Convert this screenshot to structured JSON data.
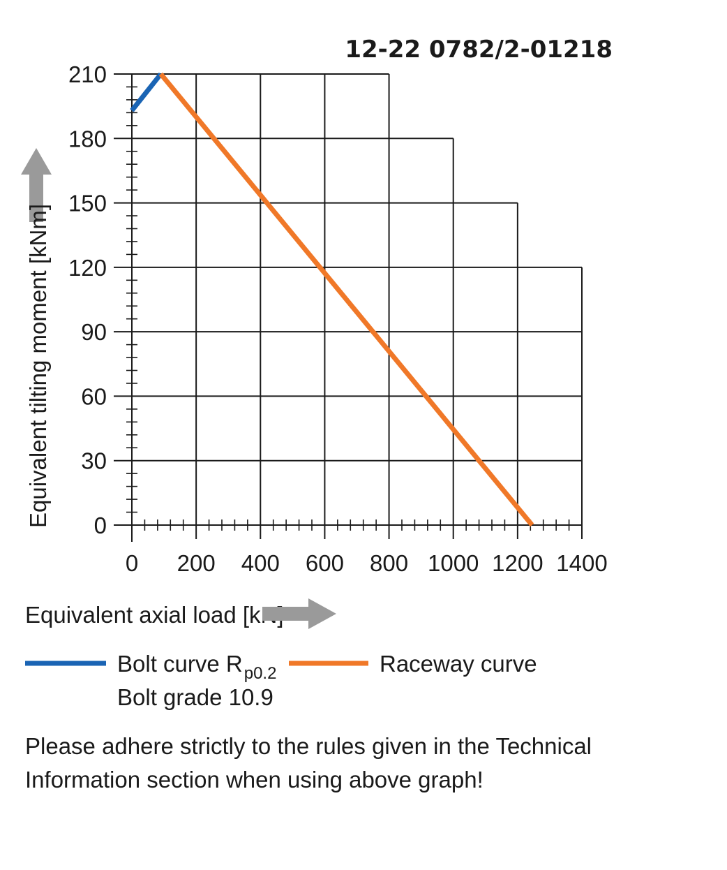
{
  "chart_data": {
    "type": "line",
    "title": "12-22 0782/2-01218",
    "xlabel": "Equivalent axial load [kN]",
    "ylabel": "Equivalent tilting moment [kNm]",
    "xlim": [
      0,
      1400
    ],
    "ylim": [
      0,
      210
    ],
    "x_ticks": [
      0,
      200,
      400,
      600,
      800,
      1000,
      1200,
      1400
    ],
    "y_ticks": [
      0,
      30,
      60,
      90,
      120,
      150,
      180,
      210
    ],
    "x_tick_labels": [
      "0",
      "200",
      "400",
      "600",
      "800",
      "1000",
      "1200",
      "1400"
    ],
    "y_tick_labels": [
      "0",
      "30",
      "60",
      "90",
      "120",
      "150",
      "180",
      "210"
    ],
    "grid_extent": [
      {
        "y": 210,
        "x_max": 800
      },
      {
        "y": 180,
        "x_max": 1000
      },
      {
        "y": 150,
        "x_max": 1200
      },
      {
        "y": 120,
        "x_max": 1400
      },
      {
        "y": 90,
        "x_max": 1400
      },
      {
        "y": 60,
        "x_max": 1400
      },
      {
        "y": 30,
        "x_max": 1400
      },
      {
        "y": 0,
        "x_max": 1400
      }
    ],
    "series": [
      {
        "name": "Bolt curve",
        "name_subscript": "R p0.2",
        "name_line2": "Bolt grade 10.9",
        "color": "#1a64b4",
        "points": [
          [
            0,
            193
          ],
          [
            90,
            210
          ]
        ]
      },
      {
        "name": "Raceway curve",
        "color": "#f07828",
        "points": [
          [
            90,
            210
          ],
          [
            1245,
            0
          ]
        ]
      }
    ]
  },
  "legend": {
    "bolt_label": "Bolt curve  R",
    "bolt_sub": "p0.2",
    "bolt_line2": "Bolt grade 10.9",
    "raceway_label": "Raceway curve"
  },
  "note": {
    "line1": "Please adhere strictly to the rules given in the Technical",
    "line2": "Information section when using above graph!"
  },
  "colors": {
    "arrow": "#9a9a9a",
    "grid": "#1a1a1a"
  }
}
